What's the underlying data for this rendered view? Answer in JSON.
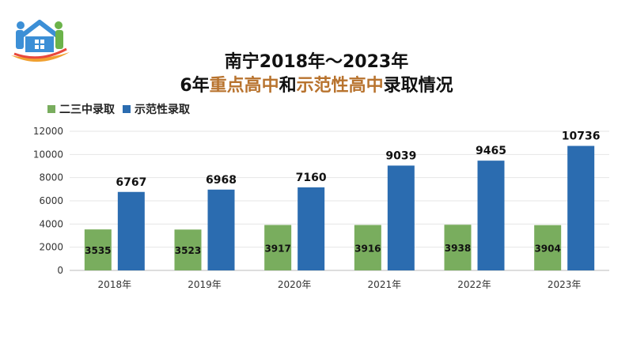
{
  "title": {
    "line1": "南宁2018年～2023年",
    "line2_parts": [
      {
        "text": "6年",
        "highlight": false
      },
      {
        "text": "重点高中",
        "highlight": true
      },
      {
        "text": "和",
        "highlight": false
      },
      {
        "text": "示范性高中",
        "highlight": true
      },
      {
        "text": "录取情况",
        "highlight": false
      }
    ]
  },
  "colors": {
    "series_green": "#79ad5e",
    "series_blue": "#2b6cb0",
    "highlight": "#b8732e",
    "logo_blue": "#3c8fd6",
    "logo_green": "#6bb34a",
    "logo_orange": "#f0a030",
    "logo_red": "#e8483c"
  },
  "logo_icon": "house-family-icon",
  "chart_data": {
    "type": "bar",
    "categories": [
      "2018年",
      "2019年",
      "2020年",
      "2021年",
      "2022年",
      "2023年"
    ],
    "series": [
      {
        "name": "二三中录取",
        "values": [
          3535,
          3523,
          3917,
          3916,
          3938,
          3904
        ]
      },
      {
        "name": "示范性录取",
        "values": [
          6767,
          6968,
          7160,
          9039,
          9465,
          10736
        ]
      }
    ],
    "ylim": [
      0,
      12000
    ],
    "yticks": [
      0,
      2000,
      4000,
      6000,
      8000,
      10000,
      12000
    ],
    "grid": true,
    "legend_position": "top-left",
    "data_labels": true
  }
}
